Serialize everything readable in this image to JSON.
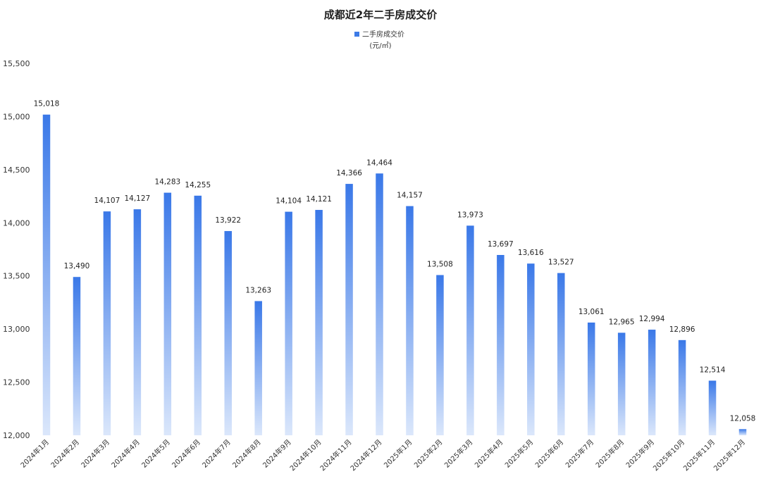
{
  "chart_data": {
    "type": "bar",
    "title": "成都近2年二手房成交价",
    "legend": {
      "position": "top-center",
      "entries": [
        {
          "name": "二手房成交价",
          "unit": "(元/㎡)",
          "color": "#3d7be6"
        }
      ]
    },
    "categories": [
      "2024年1月",
      "2024年2月",
      "2024年3月",
      "2024年4月",
      "2024年5月",
      "2024年6月",
      "2024年7月",
      "2024年8月",
      "2024年9月",
      "2024年10月",
      "2024年11月",
      "2024年12月",
      "2025年1月",
      "2025年2月",
      "2025年3月",
      "2025年4月",
      "2025年5月",
      "2025年6月",
      "2025年7月",
      "2025年8月",
      "2025年9月",
      "2025年10月",
      "2025年11月",
      "2025年12月"
    ],
    "series": [
      {
        "name": "二手房成交价",
        "values": [
          15018,
          13490,
          14107,
          14127,
          14283,
          14255,
          13922,
          13263,
          14104,
          14121,
          14366,
          14464,
          14157,
          13508,
          13973,
          13697,
          13616,
          13527,
          13061,
          12965,
          12994,
          12896,
          12514,
          12058
        ]
      }
    ],
    "data_labels": [
      "15,018",
      "13,490",
      "14,107",
      "14,127",
      "14,283",
      "14,255",
      "13,922",
      "13,263",
      "14,104",
      "14,121",
      "14,366",
      "14,464",
      "14,157",
      "13,508",
      "13,973",
      "13,697",
      "13,616",
      "13,527",
      "13,061",
      "12,965",
      "12,994",
      "12,896",
      "12,514",
      "12,058"
    ],
    "ylim": [
      12000,
      15500
    ],
    "yticks": [
      12000,
      12500,
      13000,
      13500,
      14000,
      14500,
      15000,
      15500
    ],
    "ytick_labels": [
      "12,000",
      "12,500",
      "13,000",
      "13,500",
      "14,000",
      "14,500",
      "15,000",
      "15,500"
    ],
    "grid": false,
    "colors": {
      "bar_top": "#3a78e8",
      "bar_bottom": "#dbe7fb"
    }
  }
}
